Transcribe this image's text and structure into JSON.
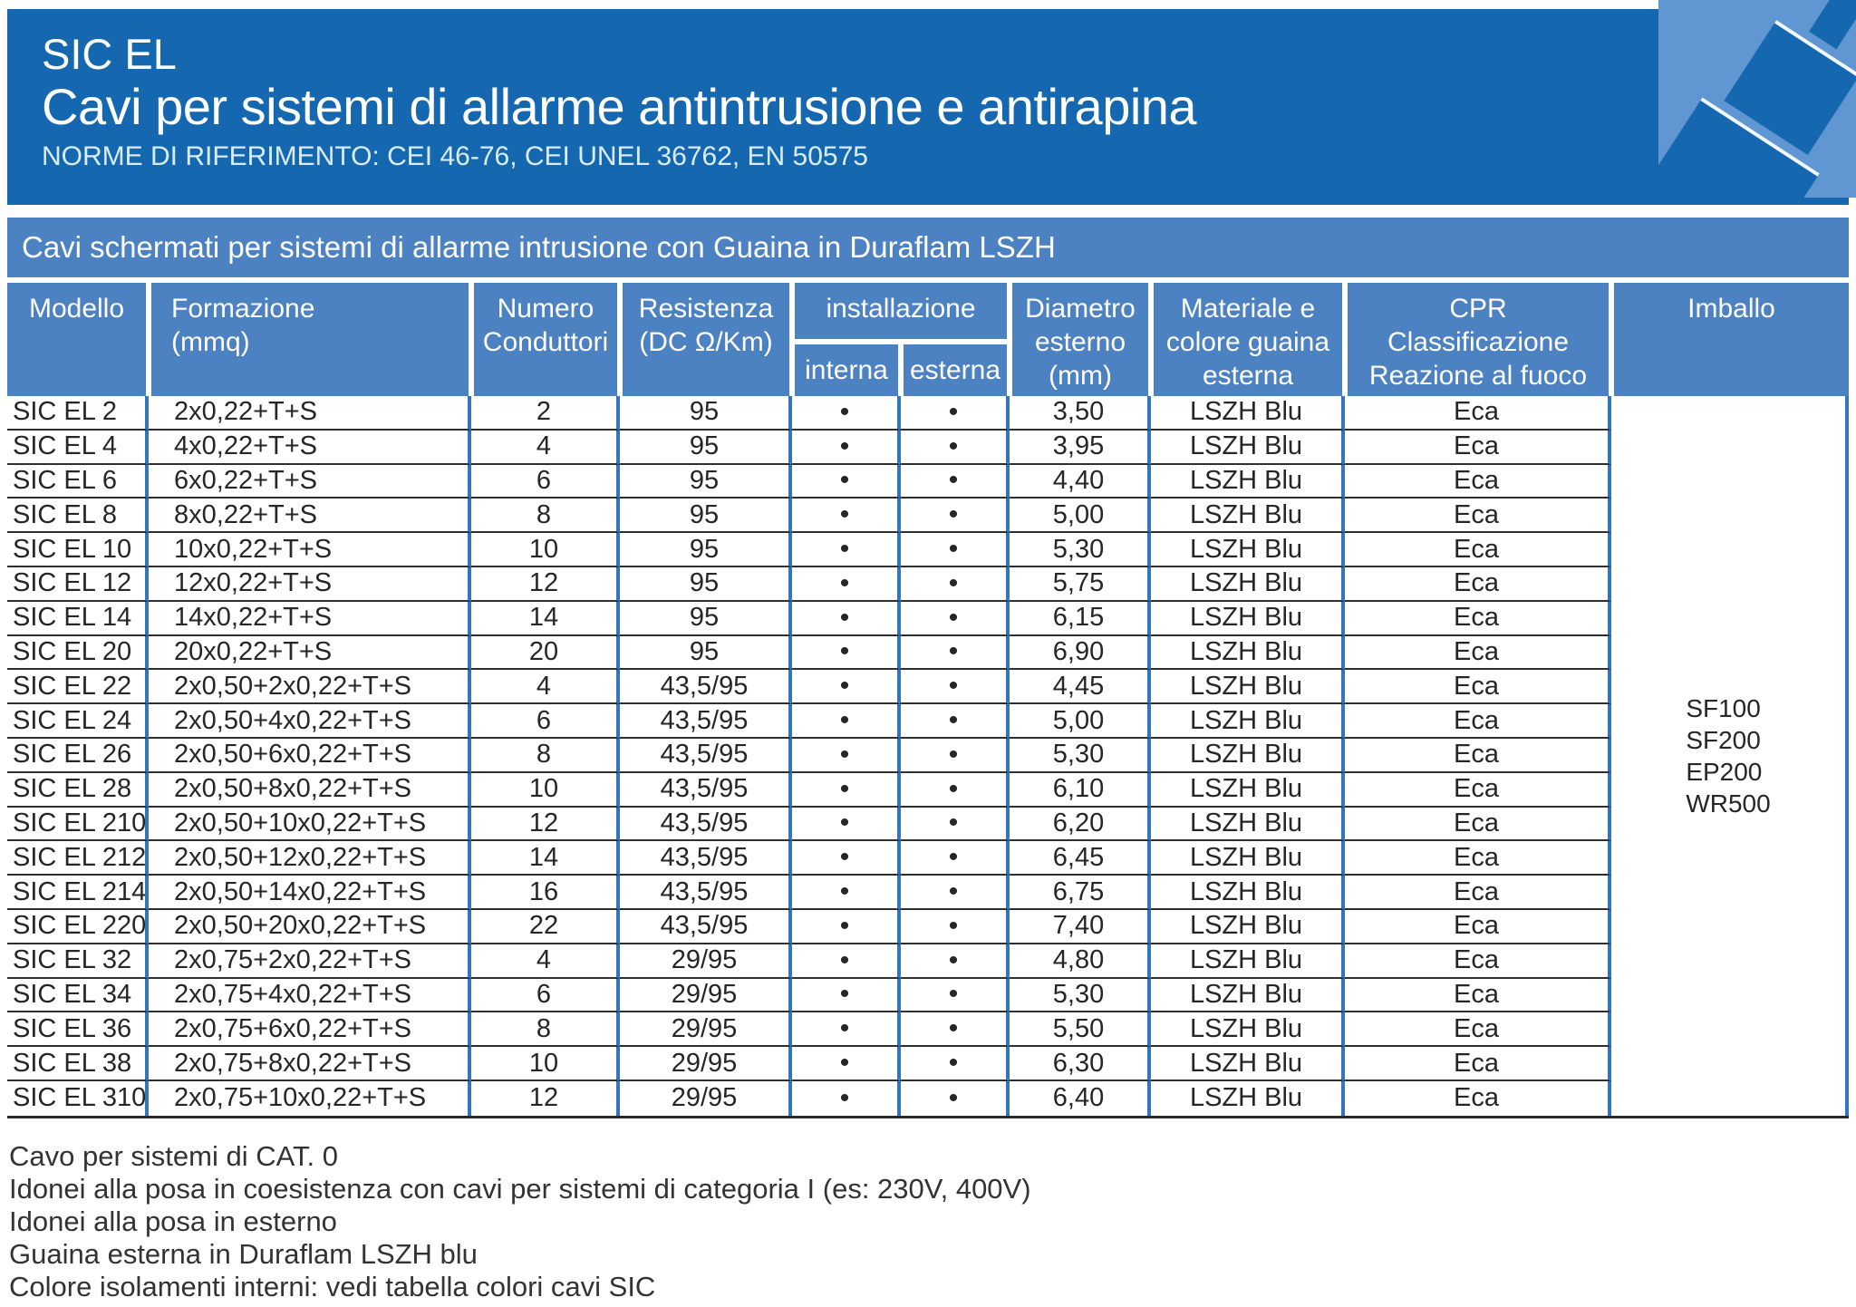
{
  "colors": {
    "header_dark_blue": "#1568af",
    "band_blue": "#4c81c2",
    "grid_line_blue": "#3277bd",
    "graphic_light_blue": "#6096d1",
    "row_line_dark": "#2f2f2f"
  },
  "header": {
    "brand": "SIC EL",
    "title": "Cavi per sistemi di allarme antintrusione e antirapina",
    "norms": "NORME DI RIFERIMENTO: CEI 46-76, CEI UNEL 36762, EN 50575"
  },
  "band": {
    "label": "Cavi schermati per sistemi di allarme intrusione con Guaina in Duraflam LSZH"
  },
  "table": {
    "headers": {
      "modello": "Modello",
      "formazione": "Formazione\n(mmq)",
      "numero": "Numero\nConduttori",
      "resistenza": "Resistenza\n(DC Ω/Km)",
      "installazione": "installazione",
      "interna": "interna",
      "esterna": "esterna",
      "diametro": "Diametro\nesterno\n(mm)",
      "materiale": "Materiale e\ncolore guaina\nesterna",
      "cpr": "CPR\nClassificazione\nReazione al fuoco",
      "imballo": "Imballo"
    },
    "rows": [
      {
        "modello": "SIC EL 2",
        "formazione": "2x0,22+T+S",
        "conduttori": "2",
        "resistenza": "95",
        "interna": "•",
        "esterna": "•",
        "diametro": "3,50",
        "guaina": "LSZH Blu",
        "cpr": "Eca"
      },
      {
        "modello": "SIC EL 4",
        "formazione": "4x0,22+T+S",
        "conduttori": "4",
        "resistenza": "95",
        "interna": "•",
        "esterna": "•",
        "diametro": "3,95",
        "guaina": "LSZH Blu",
        "cpr": "Eca"
      },
      {
        "modello": "SIC EL 6",
        "formazione": "6x0,22+T+S",
        "conduttori": "6",
        "resistenza": "95",
        "interna": "•",
        "esterna": "•",
        "diametro": "4,40",
        "guaina": "LSZH Blu",
        "cpr": "Eca"
      },
      {
        "modello": "SIC EL 8",
        "formazione": "8x0,22+T+S",
        "conduttori": "8",
        "resistenza": "95",
        "interna": "•",
        "esterna": "•",
        "diametro": "5,00",
        "guaina": "LSZH Blu",
        "cpr": "Eca"
      },
      {
        "modello": "SIC EL 10",
        "formazione": "10x0,22+T+S",
        "conduttori": "10",
        "resistenza": "95",
        "interna": "•",
        "esterna": "•",
        "diametro": "5,30",
        "guaina": "LSZH Blu",
        "cpr": "Eca"
      },
      {
        "modello": "SIC EL 12",
        "formazione": "12x0,22+T+S",
        "conduttori": "12",
        "resistenza": "95",
        "interna": "•",
        "esterna": "•",
        "diametro": "5,75",
        "guaina": "LSZH Blu",
        "cpr": "Eca"
      },
      {
        "modello": "SIC EL 14",
        "formazione": "14x0,22+T+S",
        "conduttori": "14",
        "resistenza": "95",
        "interna": "•",
        "esterna": "•",
        "diametro": "6,15",
        "guaina": "LSZH Blu",
        "cpr": "Eca"
      },
      {
        "modello": "SIC EL 20",
        "formazione": "20x0,22+T+S",
        "conduttori": "20",
        "resistenza": "95",
        "interna": "•",
        "esterna": "•",
        "diametro": "6,90",
        "guaina": "LSZH Blu",
        "cpr": "Eca"
      },
      {
        "modello": "SIC EL 22",
        "formazione": "2x0,50+2x0,22+T+S",
        "conduttori": "4",
        "resistenza": "43,5/95",
        "interna": "•",
        "esterna": "•",
        "diametro": "4,45",
        "guaina": "LSZH Blu",
        "cpr": "Eca"
      },
      {
        "modello": "SIC EL 24",
        "formazione": "2x0,50+4x0,22+T+S",
        "conduttori": "6",
        "resistenza": "43,5/95",
        "interna": "•",
        "esterna": "•",
        "diametro": "5,00",
        "guaina": "LSZH Blu",
        "cpr": "Eca"
      },
      {
        "modello": "SIC EL 26",
        "formazione": "2x0,50+6x0,22+T+S",
        "conduttori": "8",
        "resistenza": "43,5/95",
        "interna": "•",
        "esterna": "•",
        "diametro": "5,30",
        "guaina": "LSZH Blu",
        "cpr": "Eca"
      },
      {
        "modello": "SIC EL 28",
        "formazione": "2x0,50+8x0,22+T+S",
        "conduttori": "10",
        "resistenza": "43,5/95",
        "interna": "•",
        "esterna": "•",
        "diametro": "6,10",
        "guaina": "LSZH Blu",
        "cpr": "Eca"
      },
      {
        "modello": "SIC EL 210",
        "formazione": "2x0,50+10x0,22+T+S",
        "conduttori": "12",
        "resistenza": "43,5/95",
        "interna": "•",
        "esterna": "•",
        "diametro": "6,20",
        "guaina": "LSZH Blu",
        "cpr": "Eca"
      },
      {
        "modello": "SIC EL 212",
        "formazione": "2x0,50+12x0,22+T+S",
        "conduttori": "14",
        "resistenza": "43,5/95",
        "interna": "•",
        "esterna": "•",
        "diametro": "6,45",
        "guaina": "LSZH Blu",
        "cpr": "Eca"
      },
      {
        "modello": "SIC EL 214",
        "formazione": "2x0,50+14x0,22+T+S",
        "conduttori": "16",
        "resistenza": "43,5/95",
        "interna": "•",
        "esterna": "•",
        "diametro": "6,75",
        "guaina": "LSZH Blu",
        "cpr": "Eca"
      },
      {
        "modello": "SIC EL 220",
        "formazione": "2x0,50+20x0,22+T+S",
        "conduttori": "22",
        "resistenza": "43,5/95",
        "interna": "•",
        "esterna": "•",
        "diametro": "7,40",
        "guaina": "LSZH Blu",
        "cpr": "Eca"
      },
      {
        "modello": "SIC EL 32",
        "formazione": "2x0,75+2x0,22+T+S",
        "conduttori": "4",
        "resistenza": "29/95",
        "interna": "•",
        "esterna": "•",
        "diametro": "4,80",
        "guaina": "LSZH Blu",
        "cpr": "Eca"
      },
      {
        "modello": "SIC EL 34",
        "formazione": "2x0,75+4x0,22+T+S",
        "conduttori": "6",
        "resistenza": "29/95",
        "interna": "•",
        "esterna": "•",
        "diametro": "5,30",
        "guaina": "LSZH Blu",
        "cpr": "Eca"
      },
      {
        "modello": "SIC EL 36",
        "formazione": "2x0,75+6x0,22+T+S",
        "conduttori": "8",
        "resistenza": "29/95",
        "interna": "•",
        "esterna": "•",
        "diametro": "5,50",
        "guaina": "LSZH Blu",
        "cpr": "Eca"
      },
      {
        "modello": "SIC EL 38",
        "formazione": "2x0,75+8x0,22+T+S",
        "conduttori": "10",
        "resistenza": "29/95",
        "interna": "•",
        "esterna": "•",
        "diametro": "6,30",
        "guaina": "LSZH Blu",
        "cpr": "Eca"
      },
      {
        "modello": "SIC EL 310",
        "formazione": "2x0,75+10x0,22+T+S",
        "conduttori": "12",
        "resistenza": "29/95",
        "interna": "•",
        "esterna": "•",
        "diametro": "6,40",
        "guaina": "LSZH Blu",
        "cpr": "Eca"
      }
    ],
    "imballo_values": [
      "SF100",
      "SF200",
      "EP200",
      "WR500"
    ]
  },
  "notes": [
    "Cavo per sistemi di CAT. 0",
    "Idonei alla posa in coesistenza con cavi per sistemi di categoria I (es: 230V, 400V)",
    "Idonei alla posa in esterno",
    "Guaina esterna in Duraflam LSZH blu",
    "Colore isolamenti interni: vedi tabella colori cavi SIC"
  ]
}
